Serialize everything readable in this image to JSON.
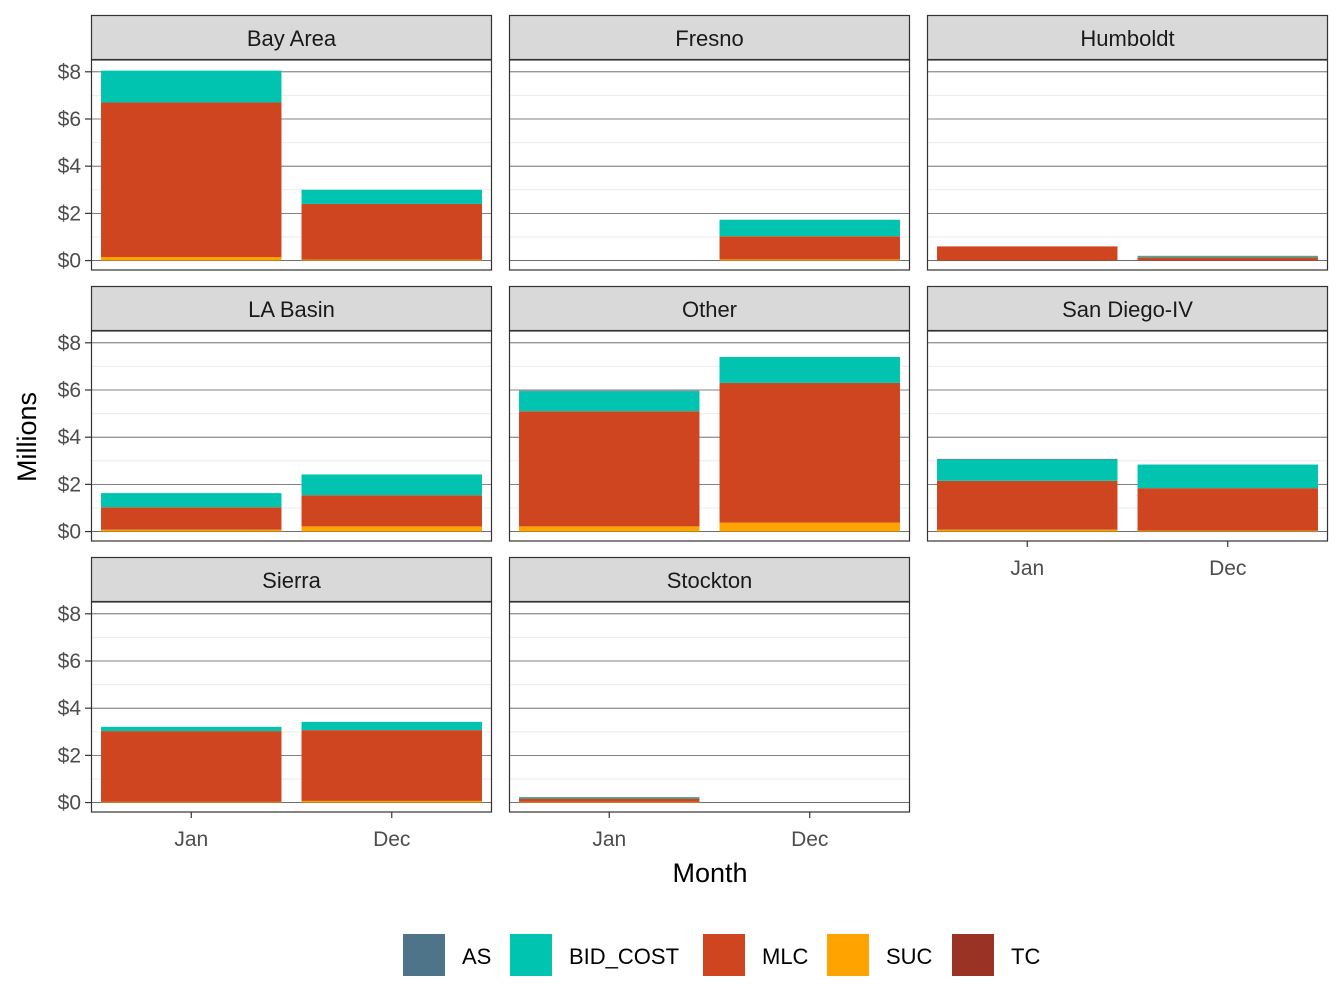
{
  "chart_data": {
    "type": "bar",
    "stacked": true,
    "faceted": true,
    "xlabel": "Month",
    "ylabel": "Millions",
    "categories": [
      "Jan",
      "Dec"
    ],
    "ylim": [
      0,
      8.5
    ],
    "y_ticks": [
      0,
      2,
      4,
      6,
      8
    ],
    "y_tick_labels": [
      "$0",
      "$2",
      "$4",
      "$6",
      "$8"
    ],
    "grid": true,
    "legend_position": "bottom",
    "series_order": [
      "SUC",
      "MLC",
      "BID_COST",
      "AS",
      "TC"
    ],
    "legend": [
      {
        "name": "AS",
        "color": "#4e7489"
      },
      {
        "name": "BID_COST",
        "color": "#00c4b0"
      },
      {
        "name": "MLC",
        "color": "#cf4520"
      },
      {
        "name": "SUC",
        "color": "#ffa300"
      },
      {
        "name": "TC",
        "color": "#9a3324"
      }
    ],
    "panels": [
      {
        "title": "Bay Area",
        "data": {
          "Jan": {
            "SUC": 0.15,
            "MLC": 6.55,
            "BID_COST": 1.35,
            "AS": 0.0,
            "TC": 0.0
          },
          "Dec": {
            "SUC": 0.04,
            "MLC": 2.36,
            "BID_COST": 0.6,
            "AS": 0.0,
            "TC": 0.0
          }
        }
      },
      {
        "title": "Fresno",
        "data": {
          "Jan": {
            "SUC": 0.0,
            "MLC": 0.0,
            "BID_COST": 0.0,
            "AS": 0.0,
            "TC": 0.0
          },
          "Dec": {
            "SUC": 0.05,
            "MLC": 0.98,
            "BID_COST": 0.7,
            "AS": 0.0,
            "TC": 0.0
          }
        }
      },
      {
        "title": "Humboldt",
        "data": {
          "Jan": {
            "SUC": 0.0,
            "MLC": 0.6,
            "BID_COST": 0.0,
            "AS": 0.0,
            "TC": 0.0
          },
          "Dec": {
            "SUC": 0.0,
            "MLC": 0.14,
            "BID_COST": 0.04,
            "AS": 0.02,
            "TC": 0.0
          }
        }
      },
      {
        "title": "LA Basin",
        "data": {
          "Jan": {
            "SUC": 0.08,
            "MLC": 0.95,
            "BID_COST": 0.6,
            "AS": 0.0,
            "TC": 0.0
          },
          "Dec": {
            "SUC": 0.22,
            "MLC": 1.32,
            "BID_COST": 0.88,
            "AS": 0.0,
            "TC": 0.0
          }
        }
      },
      {
        "title": "Other",
        "data": {
          "Jan": {
            "SUC": 0.22,
            "MLC": 4.88,
            "BID_COST": 0.85,
            "AS": 0.02,
            "TC": 0.0
          },
          "Dec": {
            "SUC": 0.38,
            "MLC": 5.92,
            "BID_COST": 1.1,
            "AS": 0.0,
            "TC": 0.0
          }
        }
      },
      {
        "title": "San Diego-IV",
        "data": {
          "Jan": {
            "SUC": 0.08,
            "MLC": 2.07,
            "BID_COST": 0.9,
            "AS": 0.03,
            "TC": 0.0
          },
          "Dec": {
            "SUC": 0.04,
            "MLC": 1.8,
            "BID_COST": 1.0,
            "AS": 0.0,
            "TC": 0.0
          }
        }
      },
      {
        "title": "Sierra",
        "data": {
          "Jan": {
            "SUC": 0.03,
            "MLC": 3.0,
            "BID_COST": 0.18,
            "AS": 0.0,
            "TC": 0.0
          },
          "Dec": {
            "SUC": 0.07,
            "MLC": 3.0,
            "BID_COST": 0.35,
            "AS": 0.0,
            "TC": 0.0
          }
        }
      },
      {
        "title": "Stockton",
        "data": {
          "Jan": {
            "SUC": 0.03,
            "MLC": 0.14,
            "BID_COST": 0.04,
            "AS": 0.02,
            "TC": 0.0
          },
          "Dec": {
            "SUC": 0.0,
            "MLC": 0.0,
            "BID_COST": 0.0,
            "AS": 0.0,
            "TC": 0.0
          }
        }
      }
    ]
  }
}
